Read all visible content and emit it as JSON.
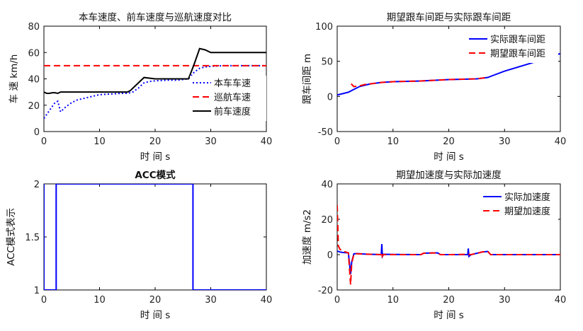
{
  "chart_data": [
    {
      "type": "line",
      "title": "本车速度、前车速度与巡航速度对比",
      "xlabel": "时 间 s",
      "ylabel": "车 速 km/h",
      "xlim": [
        0,
        40
      ],
      "ylim": [
        0,
        80
      ],
      "xticks": [
        0,
        10,
        20,
        30,
        40
      ],
      "yticks": [
        0,
        20,
        40,
        60,
        80
      ],
      "legend_position": "right",
      "series": [
        {
          "name": "本车车速",
          "color": "#0000ff",
          "dash": "dotted",
          "x": [
            0,
            1,
            2,
            2.5,
            3,
            4,
            5,
            6,
            8,
            10,
            12,
            14,
            15,
            16,
            17,
            18,
            19,
            20,
            22,
            24,
            25,
            26,
            27,
            28,
            29,
            30,
            32,
            35,
            40
          ],
          "y": [
            10,
            16,
            22,
            23,
            15,
            19,
            22,
            24,
            26,
            28,
            28.5,
            29,
            29,
            30,
            33,
            37,
            38,
            38.5,
            39,
            39,
            39.5,
            40,
            45,
            48,
            49,
            49.5,
            50,
            50,
            50
          ]
        },
        {
          "name": "巡航车速",
          "color": "#ff0000",
          "dash": "dashed",
          "x": [
            0,
            40
          ],
          "y": [
            50,
            50
          ]
        },
        {
          "name": "前车速度",
          "color": "#000000",
          "dash": "solid",
          "x": [
            0,
            0.5,
            1,
            1.5,
            2,
            2.5,
            3,
            4,
            10,
            15,
            15.5,
            18,
            20,
            25,
            26,
            27,
            28,
            29,
            30,
            40
          ],
          "y": [
            30,
            29,
            29,
            29.5,
            29.5,
            29,
            30,
            30,
            30,
            30,
            31,
            41,
            40,
            40,
            40,
            51,
            63,
            62,
            60,
            60
          ]
        }
      ]
    },
    {
      "type": "line",
      "title": "期望跟车间距与实际跟车间距",
      "xlabel": "时 间 s",
      "ylabel": "跟车间距 m",
      "xlim": [
        0,
        40
      ],
      "ylim": [
        -50,
        100
      ],
      "xticks": [
        0,
        10,
        20,
        30,
        40
      ],
      "yticks": [
        -50,
        0,
        50,
        100
      ],
      "legend_position": "top-right",
      "series": [
        {
          "name": "实际跟车间距",
          "color": "#0000ff",
          "dash": "solid",
          "x": [
            0,
            1,
            2,
            3,
            4,
            5,
            6,
            8,
            10,
            15,
            20,
            25,
            27,
            28,
            30,
            35,
            40
          ],
          "y": [
            2,
            4,
            6,
            10,
            14,
            16,
            18,
            20,
            21,
            22,
            24,
            25,
            27,
            30,
            36,
            48,
            61
          ]
        },
        {
          "name": "期望跟车间距",
          "color": "#ff0000",
          "dash": "dashed",
          "x": [
            2.5,
            3,
            4,
            5,
            6,
            8,
            10,
            15,
            20,
            25,
            27
          ],
          "y": [
            18,
            14,
            15,
            17,
            18,
            20,
            21,
            22,
            24,
            25,
            27
          ]
        }
      ]
    },
    {
      "type": "line",
      "title": "ACC模式",
      "xlabel": "时 间 s",
      "ylabel": "ACC模式表示",
      "xlim": [
        0,
        40
      ],
      "ylim": [
        1,
        2
      ],
      "xticks": [
        0,
        10,
        20,
        30,
        40
      ],
      "yticks": [
        1,
        1.5,
        2
      ],
      "series": [
        {
          "name": "",
          "color": "#0000ff",
          "dash": "solid",
          "x": [
            0,
            0,
            2.2,
            2.2,
            26.8,
            26.8,
            40
          ],
          "y": [
            2,
            1,
            1,
            2,
            2,
            1,
            1
          ]
        }
      ]
    },
    {
      "type": "line",
      "title": "期望加速度与实际加速度",
      "xlabel": "时 间 s",
      "ylabel": "加速度 m/s2",
      "xlim": [
        0,
        40
      ],
      "ylim": [
        -20,
        40
      ],
      "xticks": [
        0,
        10,
        20,
        30,
        40
      ],
      "yticks": [
        -20,
        0,
        20,
        40
      ],
      "legend_position": "top-right",
      "series": [
        {
          "name": "实际加速度",
          "color": "#0000ff",
          "dash": "solid",
          "x": [
            0,
            0.5,
            1,
            2,
            2.4,
            2.6,
            3,
            3.5,
            5,
            7.9,
            8,
            8.1,
            8.3,
            10,
            15,
            15.5,
            18,
            18.5,
            20,
            23.4,
            23.5,
            23.6,
            24,
            26,
            27,
            27.5,
            30,
            40
          ],
          "y": [
            2,
            1.5,
            1.2,
            1,
            -11,
            -4,
            0.5,
            0.6,
            0.3,
            0,
            6,
            -1,
            0.2,
            0.1,
            0,
            0.8,
            1,
            0,
            0,
            0,
            3.5,
            -1,
            0,
            1.5,
            1.8,
            0,
            0,
            0
          ]
        },
        {
          "name": "期望加速度",
          "color": "#ff0000",
          "dash": "dashed",
          "x": [
            0,
            0.2,
            0.5,
            1,
            2,
            2.4,
            2.6,
            3,
            3.5,
            5,
            7.9,
            8,
            8.2,
            10,
            15,
            15.5,
            18,
            18.5,
            20,
            23.5,
            24,
            26,
            27,
            27.5,
            30,
            40
          ],
          "y": [
            28,
            5,
            3,
            2,
            1,
            -17,
            -5,
            0.5,
            0.5,
            0.3,
            0,
            -2,
            0,
            0,
            0,
            0.8,
            1,
            0,
            0,
            0.2,
            0,
            1.5,
            1.8,
            0,
            0,
            0
          ]
        }
      ]
    }
  ]
}
